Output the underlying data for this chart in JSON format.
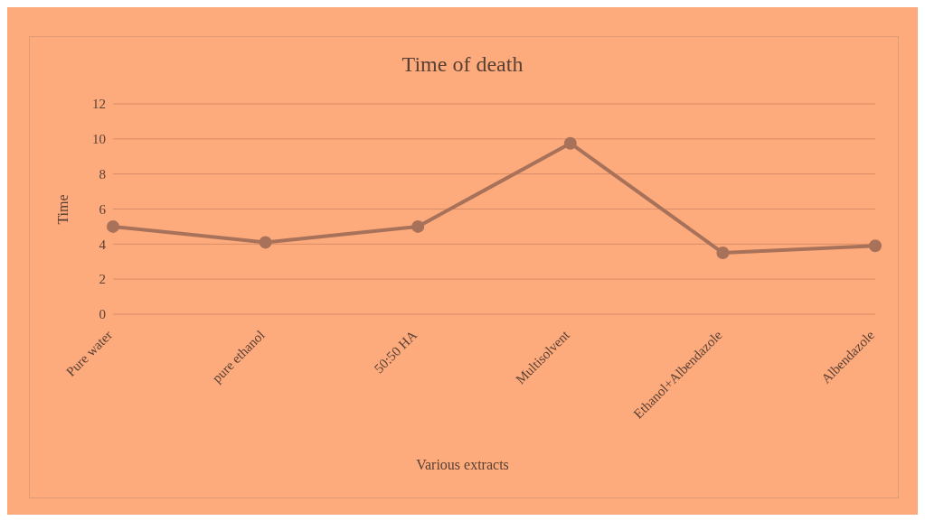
{
  "chart_data": {
    "type": "line",
    "title": "Time of death",
    "xlabel": "Various extracts",
    "ylabel": "Time",
    "categories": [
      "Pure water",
      "pure ethanol",
      "50:50 HA",
      "Multisolvent",
      "Ethanol+Albendazole",
      "Albendazole"
    ],
    "series": [
      {
        "color": "#a8715a",
        "values": [
          5,
          4.1,
          5,
          9.75,
          3.5,
          3.9
        ]
      }
    ],
    "ylim": [
      0,
      12
    ],
    "yticks": [
      0,
      2,
      4,
      6,
      8,
      10,
      12
    ],
    "grid": "y",
    "marker": "circle"
  }
}
